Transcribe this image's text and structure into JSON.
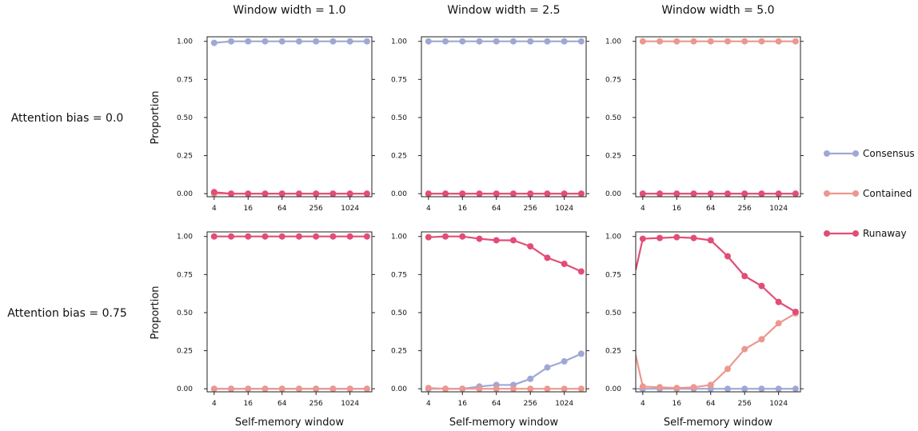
{
  "figure": {
    "col_titles": [
      "Window width = 1.0",
      "Window width = 2.5",
      "Window width = 5.0"
    ],
    "row_labels": [
      "Attention bias = 0.0",
      "Attention bias = 0.75"
    ],
    "ylabel": "Proportion",
    "xlabel": "Self-memory window"
  },
  "legend": {
    "placement": "right",
    "items": [
      {
        "name": "Consensus",
        "color": "#9fa8d4"
      },
      {
        "name": "Contained",
        "color": "#ec9790"
      },
      {
        "name": "Runaway",
        "color": "#e24d76"
      }
    ]
  },
  "chart_data": [
    {
      "type": "line",
      "row": 0,
      "col": 0,
      "x": [
        4,
        8,
        16,
        32,
        64,
        128,
        256,
        512,
        1024,
        2048
      ],
      "xscale": "log2",
      "xlim": [
        3,
        2500
      ],
      "ylim": [
        -0.02,
        1.03
      ],
      "xticks": [
        "4",
        "16",
        "64",
        "256",
        "1024"
      ],
      "yticks": [
        "0.00",
        "0.25",
        "0.50",
        "0.75",
        "1.00"
      ],
      "series": [
        {
          "name": "Consensus",
          "values": [
            0.99,
            1.0,
            1.0,
            1.0,
            1.0,
            1.0,
            1.0,
            1.0,
            1.0,
            1.0
          ]
        },
        {
          "name": "Contained",
          "values": [
            0.0,
            0.0,
            0.0,
            0.0,
            0.0,
            0.0,
            0.0,
            0.0,
            0.0,
            0.0
          ]
        },
        {
          "name": "Runaway",
          "values": [
            0.01,
            0.0,
            0.0,
            0.0,
            0.0,
            0.0,
            0.0,
            0.0,
            0.0,
            0.0
          ]
        }
      ]
    },
    {
      "type": "line",
      "row": 0,
      "col": 1,
      "x": [
        4,
        8,
        16,
        32,
        64,
        128,
        256,
        512,
        1024,
        2048
      ],
      "xscale": "log2",
      "xlim": [
        3,
        2500
      ],
      "ylim": [
        -0.02,
        1.03
      ],
      "xticks": [
        "4",
        "16",
        "64",
        "256",
        "1024"
      ],
      "yticks": [
        "0.00",
        "0.25",
        "0.50",
        "0.75",
        "1.00"
      ],
      "series": [
        {
          "name": "Consensus",
          "values": [
            1.0,
            1.0,
            1.0,
            1.0,
            1.0,
            1.0,
            1.0,
            1.0,
            1.0,
            1.0
          ]
        },
        {
          "name": "Contained",
          "values": [
            0.0,
            0.0,
            0.0,
            0.0,
            0.0,
            0.0,
            0.0,
            0.0,
            0.0,
            0.0
          ]
        },
        {
          "name": "Runaway",
          "values": [
            0.0,
            0.0,
            0.0,
            0.0,
            0.0,
            0.0,
            0.0,
            0.0,
            0.0,
            0.0
          ]
        }
      ]
    },
    {
      "type": "line",
      "row": 0,
      "col": 2,
      "x": [
        4,
        8,
        16,
        32,
        64,
        128,
        256,
        512,
        1024,
        2048
      ],
      "xscale": "log2",
      "xlim": [
        3,
        2500
      ],
      "ylim": [
        -0.02,
        1.03
      ],
      "xticks": [
        "4",
        "16",
        "64",
        "256",
        "1024"
      ],
      "yticks": [
        "0.00",
        "0.25",
        "0.50",
        "0.75",
        "1.00"
      ],
      "series": [
        {
          "name": "Consensus",
          "values": [
            0.0,
            0.0,
            0.0,
            0.0,
            0.0,
            0.0,
            0.0,
            0.0,
            0.0,
            0.0
          ]
        },
        {
          "name": "Contained",
          "values": [
            1.0,
            1.0,
            1.0,
            1.0,
            1.0,
            1.0,
            1.0,
            1.0,
            1.0,
            1.0
          ]
        },
        {
          "name": "Runaway",
          "values": [
            0.0,
            0.0,
            0.0,
            0.0,
            0.0,
            0.0,
            0.0,
            0.0,
            0.0,
            0.0
          ]
        }
      ]
    },
    {
      "type": "line",
      "row": 1,
      "col": 0,
      "x": [
        4,
        8,
        16,
        32,
        64,
        128,
        256,
        512,
        1024,
        2048
      ],
      "xscale": "log2",
      "xlim": [
        3,
        2500
      ],
      "ylim": [
        -0.02,
        1.03
      ],
      "xticks": [
        "4",
        "16",
        "64",
        "256",
        "1024"
      ],
      "yticks": [
        "0.00",
        "0.25",
        "0.50",
        "0.75",
        "1.00"
      ],
      "series": [
        {
          "name": "Consensus",
          "values": [
            0.0,
            0.0,
            0.0,
            0.0,
            0.0,
            0.0,
            0.0,
            0.0,
            0.0,
            0.0
          ]
        },
        {
          "name": "Contained",
          "values": [
            0.0,
            0.0,
            0.0,
            0.0,
            0.0,
            0.0,
            0.0,
            0.0,
            0.0,
            0.0
          ]
        },
        {
          "name": "Runaway",
          "values": [
            1.0,
            1.0,
            1.0,
            1.0,
            1.0,
            1.0,
            1.0,
            1.0,
            1.0,
            1.0
          ]
        }
      ]
    },
    {
      "type": "line",
      "row": 1,
      "col": 1,
      "x": [
        4,
        8,
        16,
        32,
        64,
        128,
        256,
        512,
        1024,
        2048
      ],
      "xscale": "log2",
      "xlim": [
        3,
        2500
      ],
      "ylim": [
        -0.02,
        1.03
      ],
      "xticks": [
        "4",
        "16",
        "64",
        "256",
        "1024"
      ],
      "yticks": [
        "0.00",
        "0.25",
        "0.50",
        "0.75",
        "1.00"
      ],
      "series": [
        {
          "name": "Consensus",
          "values": [
            0.0,
            0.0,
            0.0,
            0.015,
            0.025,
            0.025,
            0.065,
            0.14,
            0.18,
            0.23
          ]
        },
        {
          "name": "Contained",
          "values": [
            0.005,
            0.0,
            0.0,
            0.0,
            0.0,
            0.0,
            0.0,
            0.0,
            0.0,
            0.0
          ]
        },
        {
          "name": "Runaway",
          "values": [
            0.995,
            1.0,
            1.0,
            0.985,
            0.975,
            0.975,
            0.935,
            0.86,
            0.82,
            0.77
          ]
        }
      ]
    },
    {
      "type": "line",
      "row": 1,
      "col": 2,
      "x": [
        3,
        4,
        8,
        16,
        32,
        64,
        128,
        256,
        512,
        1024,
        2048
      ],
      "xscale": "log2",
      "xlim": [
        3,
        2500
      ],
      "ylim": [
        -0.02,
        1.03
      ],
      "xticks": [
        "4",
        "16",
        "64",
        "256",
        "1024"
      ],
      "yticks": [
        "0.00",
        "0.25",
        "0.50",
        "0.75",
        "1.00"
      ],
      "series": [
        {
          "name": "Consensus",
          "values": [
            0.0,
            0.0,
            0.0,
            0.0,
            0.0,
            0.0,
            0.0,
            0.0,
            0.0,
            0.0,
            0.0
          ]
        },
        {
          "name": "Contained",
          "values": [
            0.22,
            0.015,
            0.01,
            0.005,
            0.01,
            0.025,
            0.13,
            0.26,
            0.325,
            0.43,
            0.495
          ]
        },
        {
          "name": "Runaway",
          "values": [
            0.78,
            0.985,
            0.99,
            0.995,
            0.99,
            0.975,
            0.87,
            0.74,
            0.675,
            0.57,
            0.505
          ]
        }
      ]
    }
  ]
}
